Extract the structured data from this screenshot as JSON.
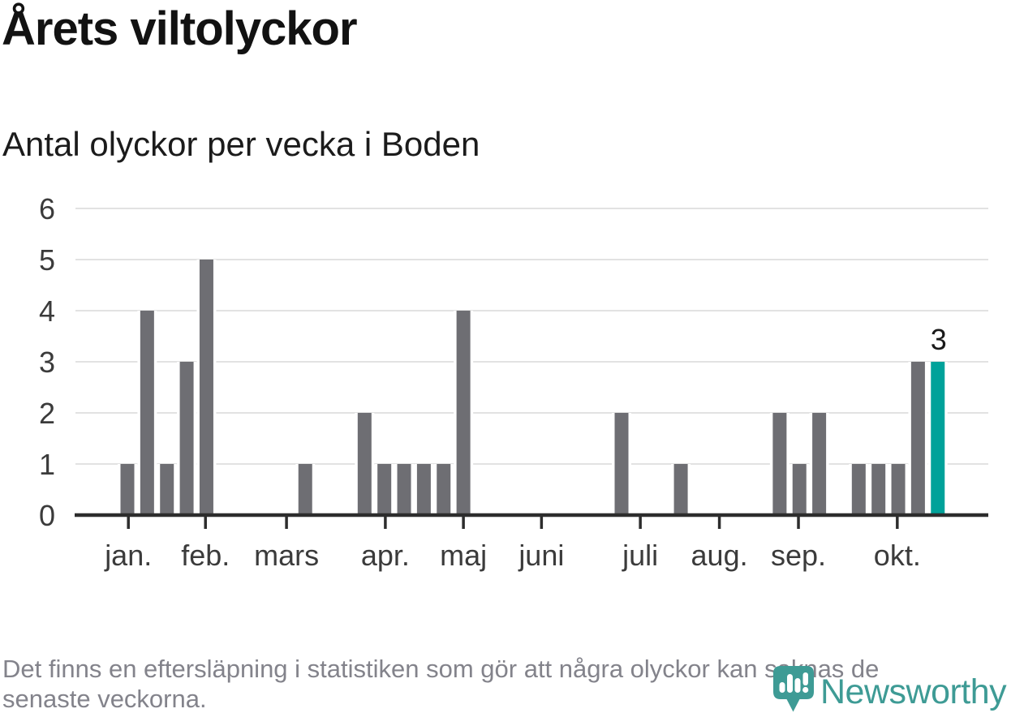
{
  "chart_data": {
    "type": "bar",
    "title": "Årets viltolyckor",
    "subtitle": "Antal olyckor per vecka i Boden",
    "xlabel": "",
    "ylabel": "",
    "x_unit": "week-of-year",
    "ylim": [
      0,
      6
    ],
    "yticks": [
      0,
      1,
      2,
      3,
      4,
      5,
      6
    ],
    "grid": true,
    "weeks": [
      1,
      4,
      1,
      3,
      5,
      0,
      0,
      0,
      0,
      1,
      0,
      0,
      2,
      1,
      1,
      1,
      1,
      4,
      0,
      0,
      0,
      0,
      0,
      0,
      0,
      2,
      0,
      0,
      1,
      0,
      0,
      0,
      0,
      2,
      1,
      2,
      0,
      1,
      1,
      1,
      3,
      3
    ],
    "month_ticks": [
      {
        "label": "jan.",
        "slot": 0.05
      },
      {
        "label": "feb.",
        "slot": 3.95
      },
      {
        "label": "mars",
        "slot": 8.05
      },
      {
        "label": "apr.",
        "slot": 13.05
      },
      {
        "label": "maj",
        "slot": 17.0
      },
      {
        "label": "juni",
        "slot": 20.95
      },
      {
        "label": "juli",
        "slot": 25.95
      },
      {
        "label": "aug.",
        "slot": 29.95
      },
      {
        "label": "sep.",
        "slot": 33.95
      },
      {
        "label": "okt.",
        "slot": 38.95
      }
    ],
    "highlight": {
      "index": 41,
      "value": 3,
      "label": "3"
    },
    "colors": {
      "bar": "#6E6E73",
      "highlight": "#00A29A",
      "grid": "#E2E2E2",
      "axis": "#2D2D2D",
      "tick_label": "#3B3B3B",
      "annotation": "#1A1A1A"
    }
  },
  "footnote": {
    "line1": "Det finns en eftersläpning i statistiken som gör att några olyckor kan saknas de",
    "line2": "senaste veckorna."
  },
  "logo": {
    "wordmark": "Newsworthy",
    "icon": "newsworthy-pin-barchart-icon",
    "color": "#3E9B95"
  }
}
